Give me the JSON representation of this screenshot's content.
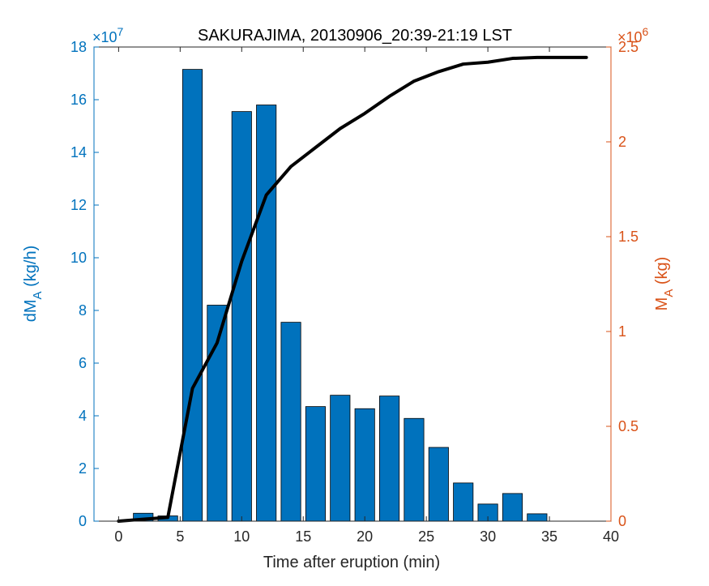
{
  "chart_data": {
    "type": "bar",
    "title": "SAKURAJIMA, 20130906_20:39-21:19 LST",
    "xlabel": "Time after eruption (min)",
    "ylabel_left": {
      "main": "dM",
      "sub": "A",
      "unit": " (kg/h)"
    },
    "ylabel_right": {
      "main": "M",
      "sub": "A",
      "unit": " (kg)"
    },
    "left_exponent": {
      "base": "×10",
      "power": "7"
    },
    "right_exponent": {
      "base": "×10",
      "power": "6"
    },
    "xlim": [
      -2,
      40
    ],
    "ylim_left": [
      0,
      18
    ],
    "ylim_right": [
      0,
      2.5
    ],
    "x_ticks": [
      0,
      5,
      10,
      15,
      20,
      25,
      30,
      35,
      40
    ],
    "x_tick_labels": [
      "0",
      "5",
      "10",
      "15",
      "20",
      "25",
      "30",
      "35",
      "40"
    ],
    "y_left_ticks": [
      0,
      2,
      4,
      6,
      8,
      10,
      12,
      14,
      16,
      18
    ],
    "y_left_tick_labels": [
      "0",
      "2",
      "4",
      "6",
      "8",
      "10",
      "12",
      "14",
      "16",
      "18"
    ],
    "y_right_ticks": [
      0,
      0.5,
      1,
      1.5,
      2,
      2.5
    ],
    "y_right_tick_labels": [
      "0",
      "0.5",
      "1",
      "1.5",
      "2",
      "2.5"
    ],
    "bar_width": 1.6,
    "bar_series": {
      "axis": "left",
      "x": [
        0,
        2,
        4,
        6,
        8,
        10,
        12,
        14,
        16,
        18,
        20,
        22,
        24,
        26,
        28,
        30,
        32,
        34,
        36,
        38
      ],
      "values": [
        0.0,
        0.3,
        0.2,
        17.15,
        8.2,
        15.55,
        15.8,
        7.55,
        4.35,
        4.78,
        4.27,
        4.75,
        3.9,
        2.8,
        1.45,
        0.65,
        1.05,
        0.28,
        0.0,
        0.0
      ]
    },
    "line_series": {
      "axis": "right",
      "x": [
        0,
        2,
        4,
        6,
        8,
        10,
        12,
        14,
        16,
        18,
        20,
        22,
        24,
        26,
        28,
        30,
        32,
        34,
        36,
        38
      ],
      "values": [
        0.0,
        0.01,
        0.02,
        0.7,
        0.94,
        1.37,
        1.72,
        1.87,
        1.97,
        2.07,
        2.15,
        2.24,
        2.32,
        2.37,
        2.41,
        2.42,
        2.44,
        2.445,
        2.445,
        2.445
      ]
    },
    "colors": {
      "bars": "#0072BD",
      "bar_edge": "#000000",
      "line": "#000000",
      "left_axis": "#0072BD",
      "right_axis": "#D95319",
      "box": "#262626"
    }
  }
}
